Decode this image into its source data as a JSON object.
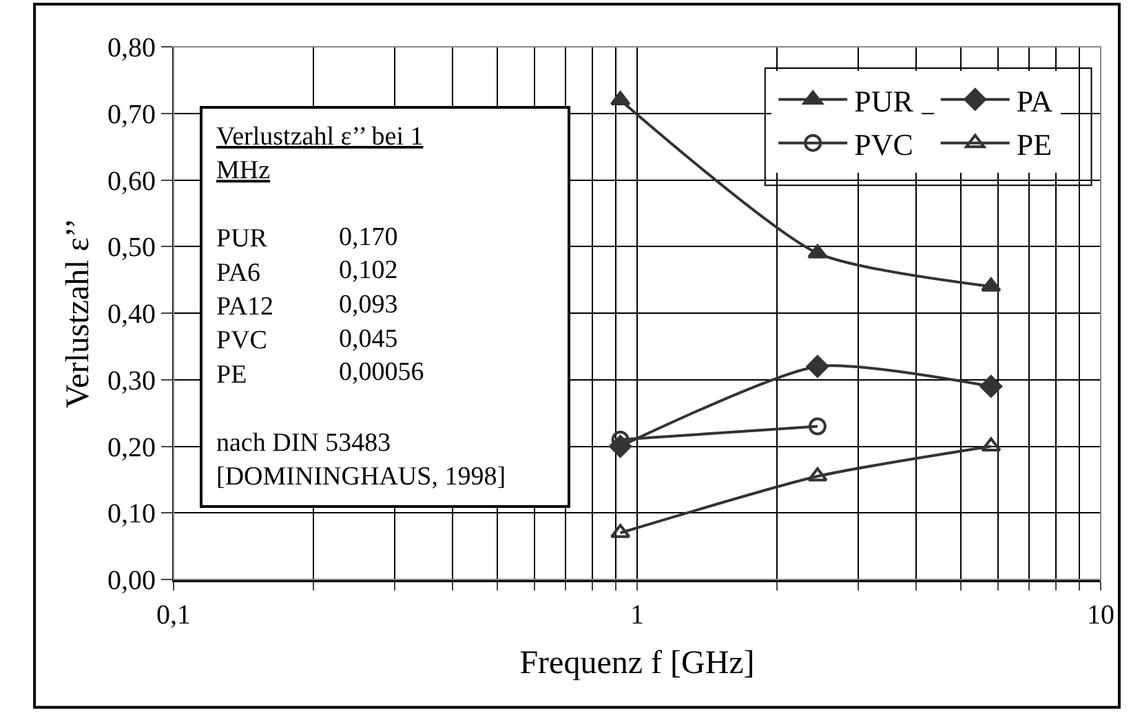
{
  "chart_data": {
    "type": "line",
    "xlabel": "Frequenz f [GHz]",
    "ylabel": "Verlustzahl ε’’",
    "log": "x",
    "grid": true,
    "legend": "top right",
    "line_style": "solid",
    "xlim": [
      0.1,
      10
    ],
    "ylim": [
      0,
      0.8
    ],
    "xticks": [
      {
        "value": 0.1,
        "label": "0,1"
      },
      {
        "value": 0.2,
        "label": null
      },
      {
        "value": 0.3,
        "label": null
      },
      {
        "value": 0.4,
        "label": null
      },
      {
        "value": 0.5,
        "label": null
      },
      {
        "value": 0.6,
        "label": null
      },
      {
        "value": 0.7,
        "label": null
      },
      {
        "value": 0.8,
        "label": null
      },
      {
        "value": 0.9,
        "label": null
      },
      1,
      {
        "value": 2,
        "label": null
      },
      {
        "value": 3,
        "label": null
      },
      {
        "value": 4,
        "label": null
      },
      {
        "value": 5,
        "label": null
      },
      {
        "value": 6,
        "label": null
      },
      {
        "value": 7,
        "label": null
      },
      {
        "value": 8,
        "label": null
      },
      {
        "value": 9,
        "label": null
      },
      10
    ],
    "yticks": [
      {
        "value": 0,
        "label": "0,00"
      },
      {
        "value": 0.1,
        "label": "0,10"
      },
      {
        "value": 0.2,
        "label": "0,20"
      },
      {
        "value": 0.3,
        "label": "0,30"
      },
      {
        "value": 0.4,
        "label": "0,40"
      },
      {
        "value": 0.5,
        "label": "0,50"
      },
      {
        "value": 0.6,
        "label": "0,60"
      },
      {
        "value": 0.7,
        "label": "0,70"
      },
      {
        "value": 0.8,
        "label": "0,80"
      }
    ],
    "series": [
      {
        "name": "PUR",
        "color": "#333333",
        "marker": "triangle",
        "x": [
          0.92,
          2.45,
          5.8
        ],
        "values": [
          0.72,
          0.49,
          0.44
        ]
      },
      {
        "name": "PA",
        "color": "#333333",
        "marker": "diamond",
        "x": [
          0.92,
          2.45,
          5.8
        ],
        "values": [
          0.2,
          0.32,
          0.29
        ]
      },
      {
        "name": "PVC",
        "color": "#333333",
        "marker": "circle-open",
        "x": [
          0.92,
          2.45
        ],
        "values": [
          0.21,
          0.23
        ]
      },
      {
        "name": "PE",
        "color": "#333333",
        "marker": "triangle-open",
        "x": [
          0.92,
          2.45,
          5.8
        ],
        "values": [
          0.07,
          0.155,
          0.2
        ]
      }
    ],
    "annotations": [
      "Verlustzahl ε’’ bei 1 MHz",
      "PUR 0,170",
      "PA6 0,102",
      "PA12 0,093",
      "PVC 0,045",
      "PE 0,00056",
      "nach DIN 53483",
      "[DOMININGHAUS, 1998]"
    ]
  }
}
